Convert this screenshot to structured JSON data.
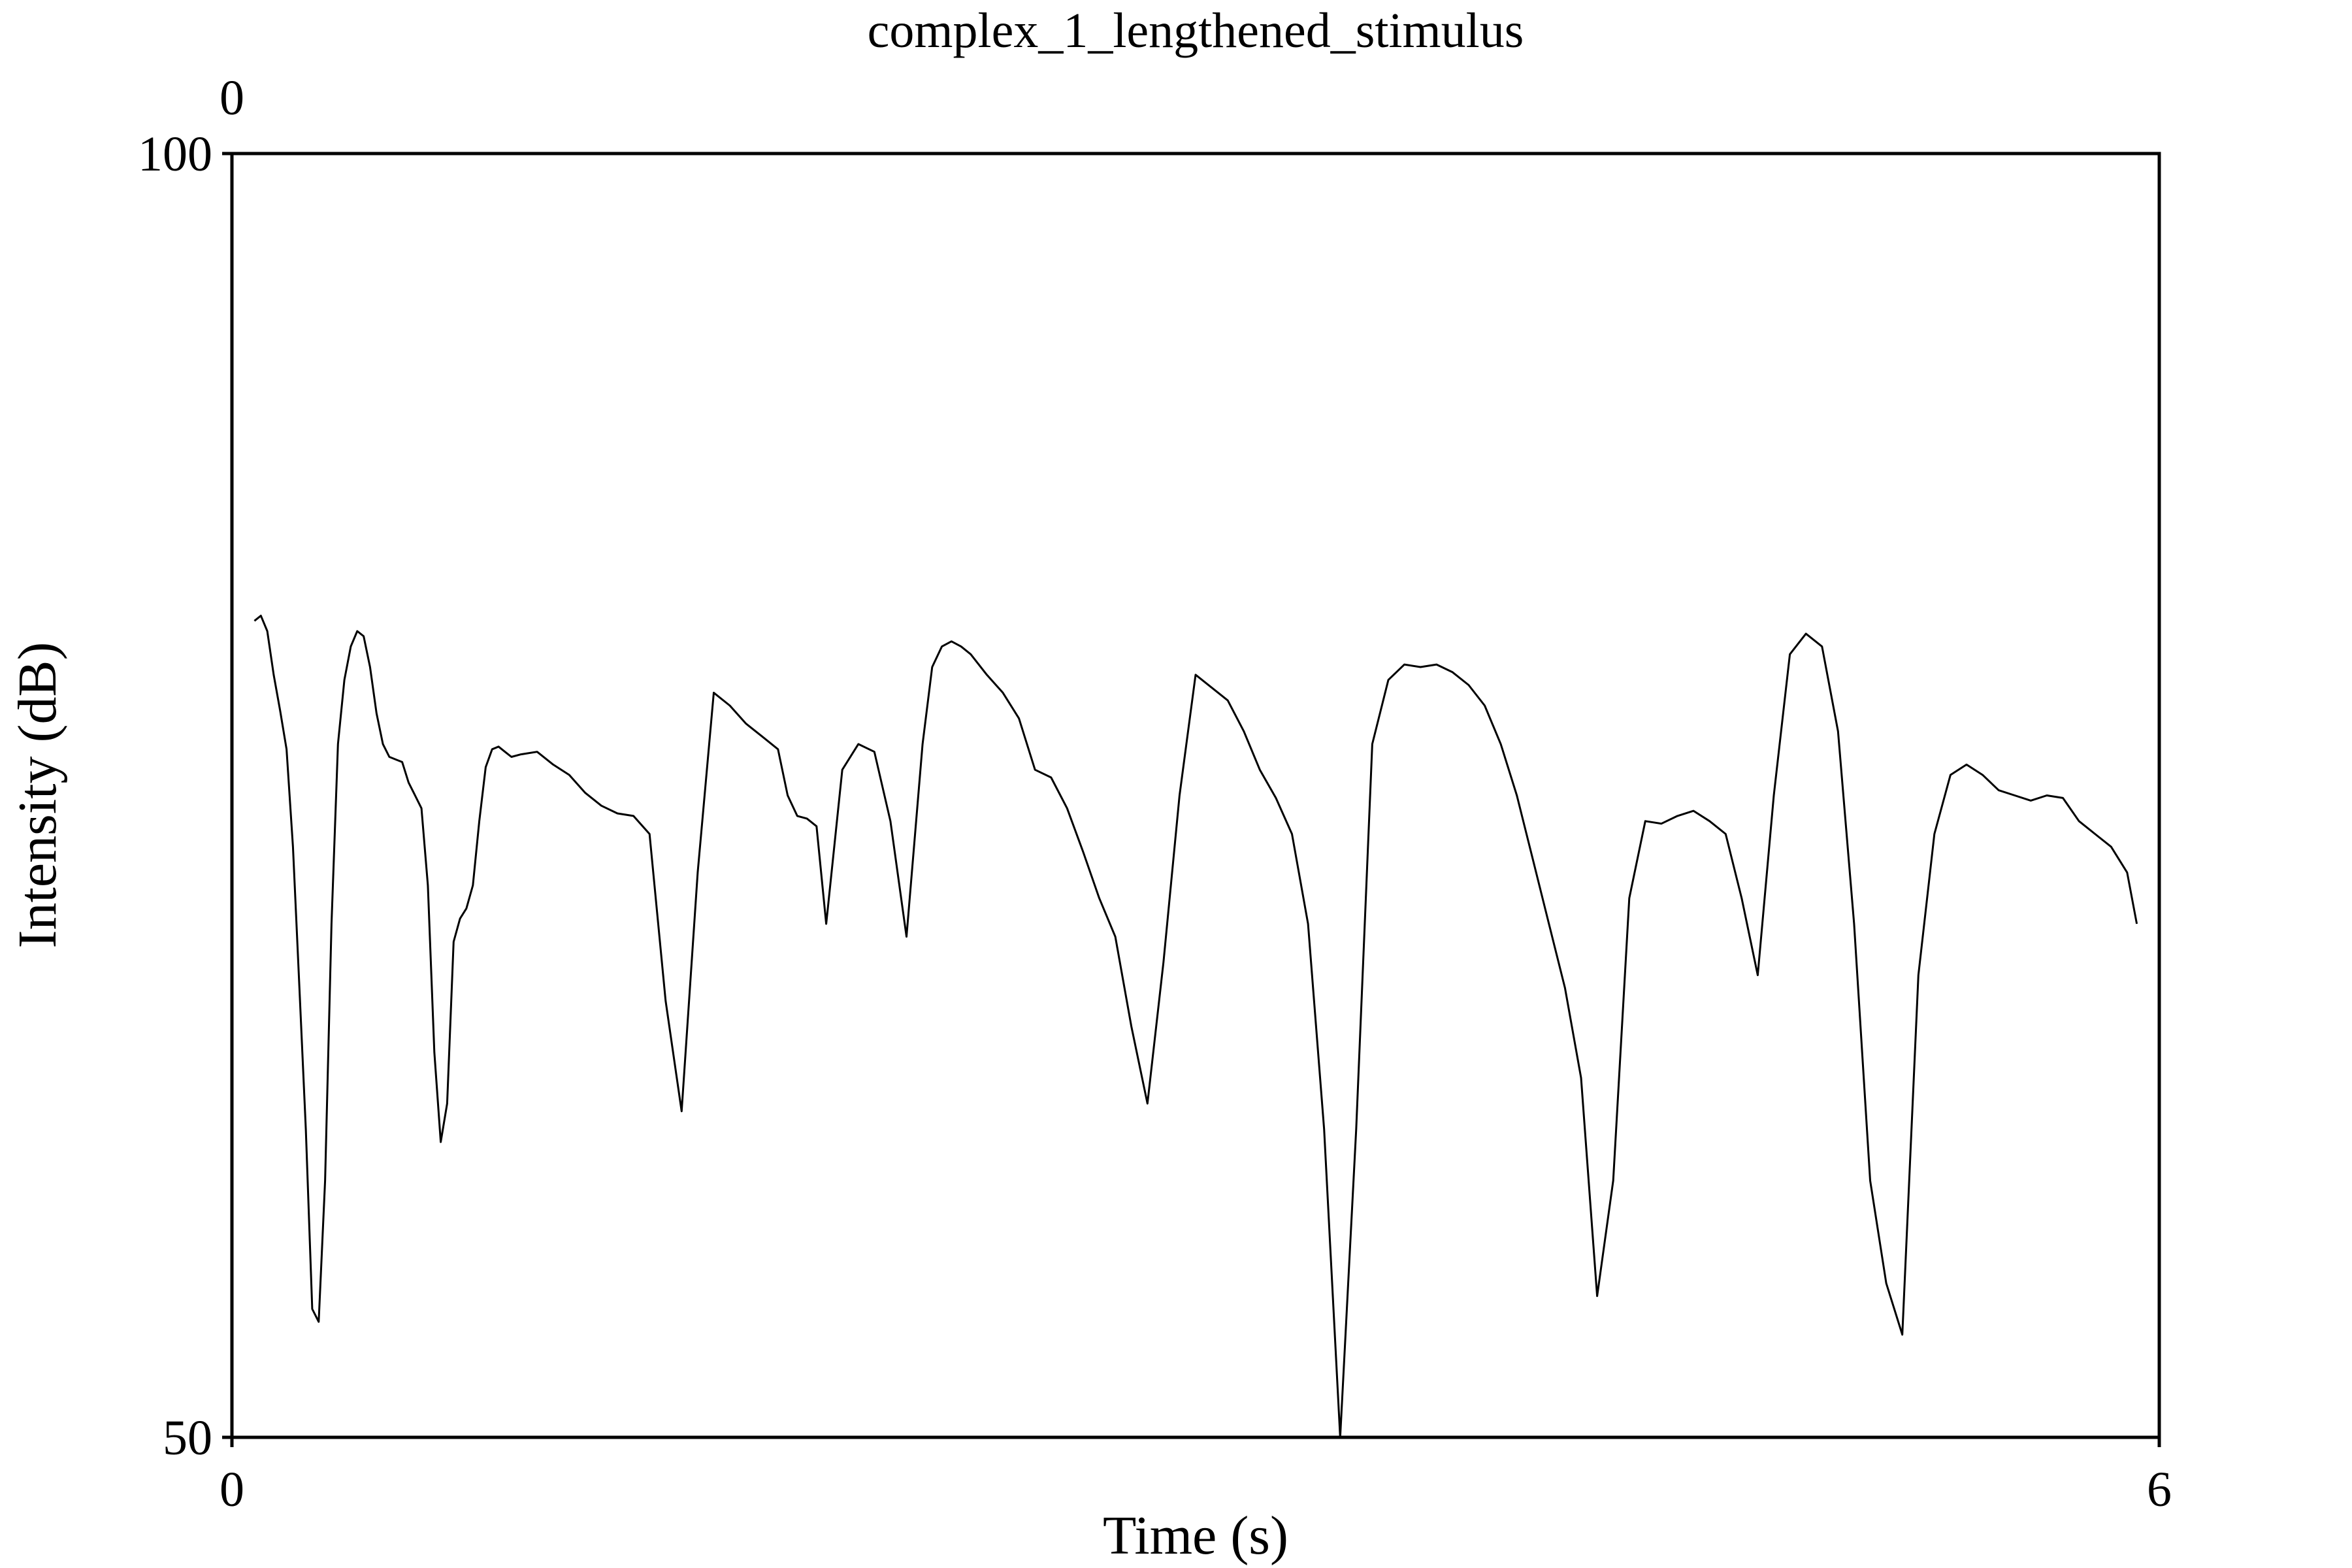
{
  "chart_data": {
    "type": "line",
    "title": "complex_1_lengthened_stimulus",
    "xlabel": "Time (s)",
    "ylabel": "Intensity (dB)",
    "xlim": [
      0,
      6
    ],
    "ylim": [
      50,
      100
    ],
    "x_tick_labels": [
      "0",
      "6"
    ],
    "y_tick_labels": [
      "50",
      "100"
    ],
    "top_left_label": "0",
    "grid": false,
    "legend": "none",
    "line_color": "#000000",
    "series": [
      {
        "x": [
          0.07,
          0.09,
          0.11,
          0.13,
          0.15,
          0.17,
          0.19,
          0.21,
          0.23,
          0.25,
          0.27,
          0.29,
          0.31,
          0.33,
          0.35,
          0.37,
          0.39,
          0.41,
          0.43,
          0.45,
          0.47,
          0.49,
          0.51,
          0.53,
          0.55,
          0.57,
          0.59,
          0.61,
          0.63,
          0.65,
          0.67,
          0.69,
          0.71,
          0.73,
          0.75,
          0.77,
          0.79,
          0.81,
          0.83,
          0.85,
          0.87,
          0.9,
          0.95,
          1.0,
          1.05,
          1.1,
          1.15,
          1.2,
          1.25,
          1.3,
          1.35,
          1.4,
          1.45,
          1.5,
          1.55,
          1.6,
          1.65,
          1.7,
          1.73,
          1.76,
          1.79,
          1.82,
          1.85,
          1.9,
          1.95,
          2.0,
          2.05,
          2.1,
          2.15,
          2.18,
          2.21,
          2.24,
          2.27,
          2.3,
          2.35,
          2.4,
          2.45,
          2.5,
          2.55,
          2.6,
          2.65,
          2.7,
          2.75,
          2.8,
          2.85,
          2.9,
          2.95,
          3.0,
          3.05,
          3.1,
          3.15,
          3.2,
          3.25,
          3.3,
          3.35,
          3.4,
          3.45,
          3.5,
          3.55,
          3.6,
          3.65,
          3.7,
          3.75,
          3.8,
          3.85,
          3.9,
          3.95,
          4.0,
          4.05,
          4.1,
          4.15,
          4.2,
          4.25,
          4.3,
          4.35,
          4.4,
          4.45,
          4.5,
          4.55,
          4.6,
          4.65,
          4.7,
          4.75,
          4.8,
          4.85,
          4.9,
          4.95,
          5.0,
          5.05,
          5.1,
          5.15,
          5.2,
          5.25,
          5.3,
          5.35,
          5.4,
          5.45,
          5.5,
          5.55,
          5.6,
          5.65,
          5.7,
          5.75,
          5.8,
          5.85,
          5.9,
          5.93
        ],
        "y": [
          81.8,
          82.0,
          81.4,
          79.7,
          78.3,
          76.8,
          73.0,
          67.5,
          62.0,
          55.0,
          54.5,
          60.0,
          70.0,
          77.0,
          79.5,
          80.8,
          81.4,
          81.2,
          80.0,
          78.2,
          77.0,
          76.5,
          76.4,
          76.3,
          75.5,
          75.0,
          74.5,
          71.5,
          65.0,
          61.5,
          63.0,
          69.3,
          70.2,
          70.6,
          71.5,
          74.0,
          76.1,
          76.8,
          76.9,
          76.7,
          76.5,
          76.6,
          76.7,
          76.2,
          75.8,
          75.1,
          74.6,
          74.3,
          74.2,
          73.5,
          67.0,
          62.7,
          72.0,
          79.0,
          78.5,
          77.8,
          77.3,
          76.8,
          75.0,
          74.2,
          74.1,
          73.8,
          70.0,
          76.0,
          77.0,
          76.7,
          74.0,
          69.5,
          77.0,
          80.0,
          80.8,
          81.0,
          80.8,
          80.5,
          79.7,
          79.0,
          78.0,
          76.0,
          75.7,
          74.5,
          72.8,
          71.0,
          69.5,
          66.0,
          63.0,
          68.5,
          75.0,
          79.7,
          79.2,
          78.7,
          77.5,
          76.0,
          74.9,
          73.5,
          70.0,
          62.0,
          50.0,
          62.0,
          77.0,
          79.5,
          80.1,
          80.0,
          80.1,
          79.8,
          79.3,
          78.5,
          77.0,
          75.0,
          72.5,
          70.0,
          67.5,
          64.0,
          55.5,
          60.0,
          71.0,
          74.0,
          73.9,
          74.2,
          74.4,
          74.0,
          73.5,
          71.0,
          68.0,
          75.0,
          80.5,
          81.3,
          80.8,
          77.5,
          70.0,
          60.0,
          56.0,
          54.0,
          68.0,
          73.5,
          75.8,
          76.2,
          75.8,
          75.2,
          75.0,
          74.8,
          75.0,
          74.9,
          74.0,
          73.5,
          73.0,
          72.0,
          70.0
        ]
      }
    ]
  }
}
